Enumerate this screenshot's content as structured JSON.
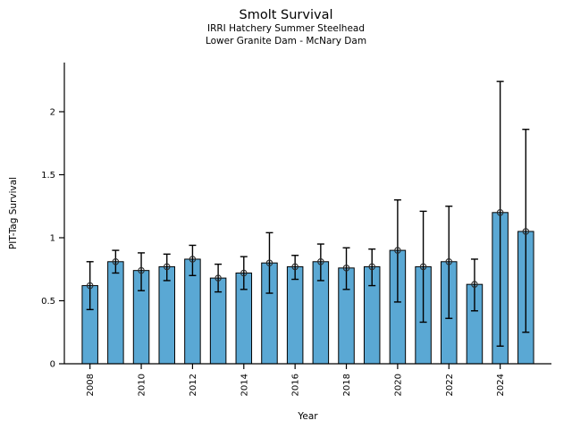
{
  "figure": {
    "title": "Smolt Survival",
    "subtitle_line1": "IRRI Hatchery Summer Steelhead",
    "subtitle_line2": "Lower Granite Dam - McNary Dam"
  },
  "chart_data": {
    "type": "bar",
    "title": "Smolt Survival",
    "subtitle": [
      "IRRI Hatchery Summer Steelhead",
      "Lower Granite Dam - McNary Dam"
    ],
    "xlabel": "Year",
    "ylabel": "PIT-Tag Survival",
    "categories": [
      2008,
      2009,
      2010,
      2011,
      2012,
      2013,
      2014,
      2015,
      2016,
      2017,
      2018,
      2019,
      2020,
      2021,
      2022,
      2023,
      2024,
      2025
    ],
    "values": [
      0.62,
      0.81,
      0.74,
      0.77,
      0.83,
      0.68,
      0.72,
      0.8,
      0.77,
      0.81,
      0.76,
      0.77,
      0.9,
      0.77,
      0.81,
      0.63,
      1.2,
      1.05
    ],
    "error_low": [
      0.43,
      0.72,
      0.58,
      0.66,
      0.7,
      0.57,
      0.59,
      0.56,
      0.67,
      0.66,
      0.59,
      0.62,
      0.49,
      0.33,
      0.36,
      0.42,
      0.14,
      0.25
    ],
    "error_high": [
      0.81,
      0.9,
      0.88,
      0.87,
      0.94,
      0.79,
      0.85,
      1.04,
      0.86,
      0.95,
      0.92,
      0.91,
      1.3,
      1.21,
      1.25,
      0.83,
      2.24,
      1.86
    ],
    "yticks": [
      0,
      0.5,
      1,
      1.5,
      2
    ],
    "ytick_labels": [
      "0",
      "0.5",
      "1",
      "1.5",
      "2"
    ],
    "xtick_labels": [
      "2008",
      "2010",
      "2012",
      "2014",
      "2016",
      "2018",
      "2020",
      "2022",
      "2024"
    ],
    "xtick_every": 2,
    "ylim": [
      0,
      2.39
    ],
    "grid": false,
    "legend": null,
    "marker": "open-circle",
    "colors": {
      "bar_fill": "#5AA8D4",
      "bar_edge": "#000000",
      "error_bar": "#000000",
      "marker_edge": "#2b2b2b",
      "axis": "#000000",
      "text": "#000000"
    }
  }
}
